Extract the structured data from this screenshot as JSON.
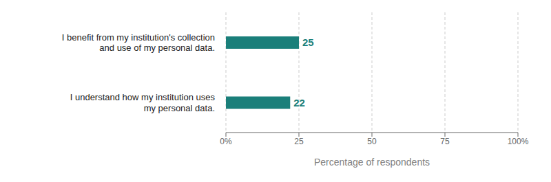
{
  "chart_data": {
    "type": "bar",
    "orientation": "horizontal",
    "categories": [
      "I understand how my institution uses\nmy personal data.",
      "I benefit from my institution's collection\nand use of my personal data."
    ],
    "values": [
      22,
      25
    ],
    "color": "#1a7f7a",
    "xlabel": "Percentage of respondents",
    "xlim": [
      0,
      100
    ],
    "xticks": [
      {
        "value": 0,
        "label": "0%"
      },
      25,
      50,
      75,
      {
        "value": 100,
        "label": "100%"
      }
    ],
    "grid": true,
    "data_labels": true
  }
}
